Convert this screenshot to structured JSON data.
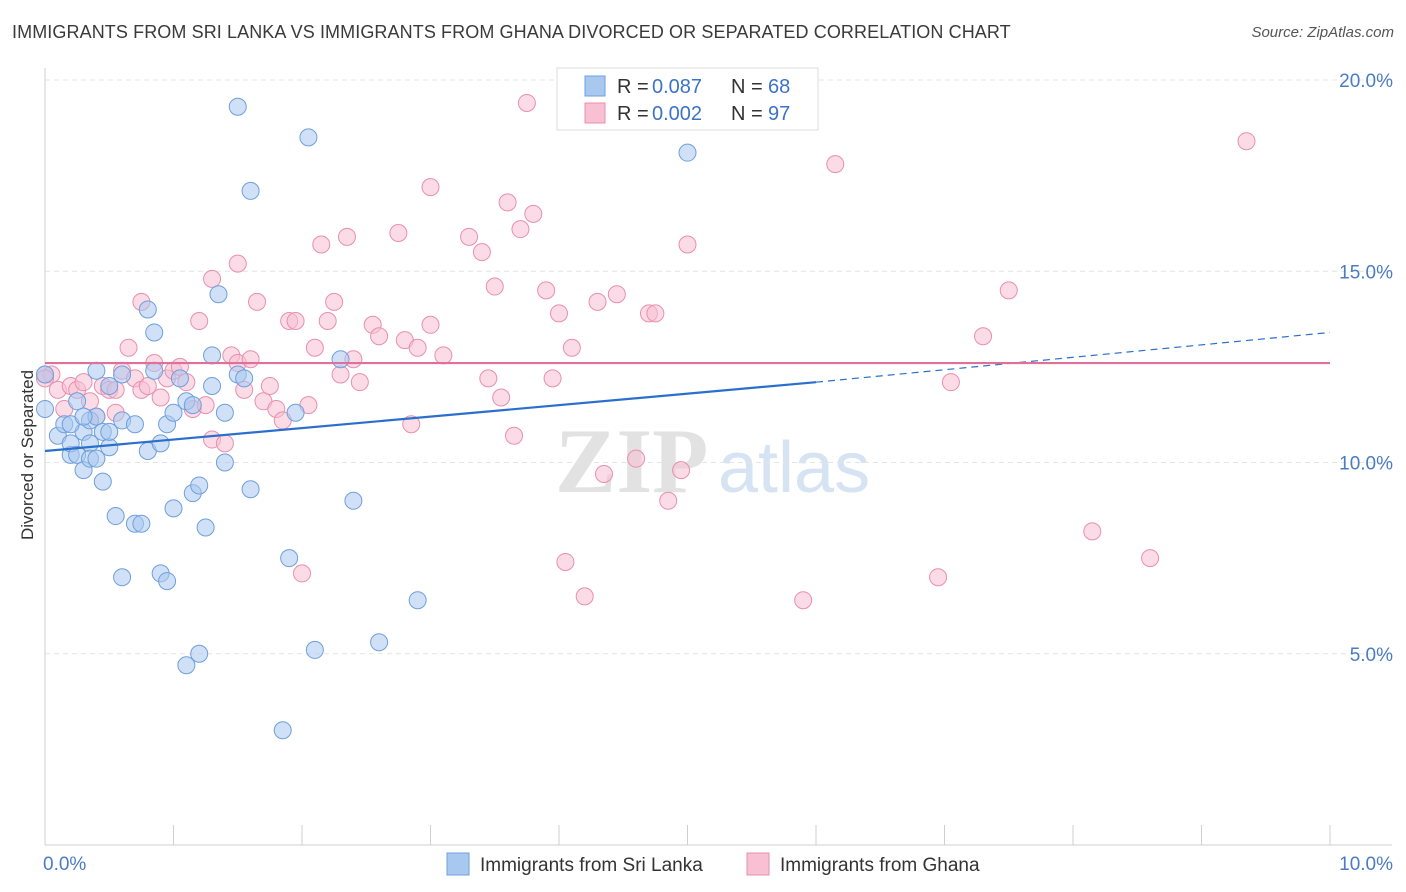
{
  "title": "IMMIGRANTS FROM SRI LANKA VS IMMIGRANTS FROM GHANA DIVORCED OR SEPARATED CORRELATION CHART",
  "source": "Source: ZipAtlas.com",
  "watermark": {
    "zip": "ZIP",
    "atlas": "atlas"
  },
  "colors": {
    "sri_lanka_fill": "#a9c8f0",
    "sri_lanka_stroke": "#6f9fdc",
    "sri_lanka_line": "#2b6fcc",
    "ghana_fill": "#f8c0d2",
    "ghana_stroke": "#e98fad",
    "ghana_line": "#e0709a",
    "tick_text": "#4a7cc4"
  },
  "legend": {
    "rows": [
      {
        "r_label": "R =",
        "r_value": "0.087",
        "n_label": "N =",
        "n_value": "68"
      },
      {
        "r_label": "R =",
        "r_value": "0.002",
        "n_label": "N =",
        "n_value": "97"
      }
    ]
  },
  "chart_data": {
    "type": "scatter",
    "title": "IMMIGRANTS FROM SRI LANKA VS IMMIGRANTS FROM GHANA DIVORCED OR SEPARATED CORRELATION CHART",
    "xlabel": "",
    "ylabel": "Divorced or Separated",
    "xlim": [
      0,
      10
    ],
    "ylim": [
      0,
      20
    ],
    "x_tick_labels": [
      "0.0%",
      "10.0%"
    ],
    "y_ticks": [
      5,
      10,
      15,
      20
    ],
    "y_tick_labels": [
      "5.0%",
      "10.0%",
      "15.0%",
      "20.0%"
    ],
    "grid": "horizontal dashed",
    "legend_position": "top-center",
    "series": [
      {
        "name": "Immigrants from Sri Lanka",
        "r": 0.087,
        "n": 68,
        "trend": {
          "x0": 0.0,
          "y0": 10.3,
          "x1": 6.0,
          "y1": 12.1,
          "dashed_to_x": 10.0,
          "dashed_to_y": 13.4
        },
        "points": [
          [
            0.0,
            12.3
          ],
          [
            0.0,
            11.4
          ],
          [
            0.1,
            10.7
          ],
          [
            0.15,
            11.0
          ],
          [
            0.2,
            10.2
          ],
          [
            0.2,
            10.5
          ],
          [
            0.25,
            10.2
          ],
          [
            0.25,
            11.6
          ],
          [
            0.3,
            9.8
          ],
          [
            0.3,
            10.8
          ],
          [
            0.35,
            11.1
          ],
          [
            0.35,
            10.5
          ],
          [
            0.35,
            10.1
          ],
          [
            0.4,
            10.1
          ],
          [
            0.4,
            11.2
          ],
          [
            0.4,
            12.4
          ],
          [
            0.45,
            10.8
          ],
          [
            0.45,
            9.5
          ],
          [
            0.5,
            12.0
          ],
          [
            0.5,
            10.4
          ],
          [
            0.5,
            10.8
          ],
          [
            0.6,
            12.3
          ],
          [
            0.6,
            11.1
          ],
          [
            0.55,
            8.6
          ],
          [
            0.6,
            7.0
          ],
          [
            0.7,
            11.0
          ],
          [
            0.7,
            8.4
          ],
          [
            0.75,
            8.4
          ],
          [
            0.8,
            10.3
          ],
          [
            0.8,
            14.0
          ],
          [
            0.85,
            13.4
          ],
          [
            0.85,
            12.4
          ],
          [
            0.9,
            10.5
          ],
          [
            0.9,
            7.1
          ],
          [
            0.95,
            6.9
          ],
          [
            0.95,
            11.0
          ],
          [
            1.0,
            11.3
          ],
          [
            1.0,
            8.8
          ],
          [
            1.05,
            12.2
          ],
          [
            1.1,
            11.6
          ],
          [
            1.1,
            4.7
          ],
          [
            1.15,
            9.2
          ],
          [
            1.2,
            9.4
          ],
          [
            1.2,
            5.0
          ],
          [
            1.25,
            8.3
          ],
          [
            1.3,
            12.0
          ],
          [
            1.3,
            12.8
          ],
          [
            1.35,
            14.4
          ],
          [
            1.4,
            11.3
          ],
          [
            1.4,
            10.0
          ],
          [
            1.5,
            12.3
          ],
          [
            1.55,
            12.2
          ],
          [
            1.5,
            19.3
          ],
          [
            1.6,
            17.1
          ],
          [
            1.6,
            9.3
          ],
          [
            1.9,
            7.5
          ],
          [
            1.85,
            3.0
          ],
          [
            1.95,
            11.3
          ],
          [
            2.1,
            5.1
          ],
          [
            2.05,
            18.5
          ],
          [
            2.3,
            12.7
          ],
          [
            2.4,
            9.0
          ],
          [
            2.6,
            5.3
          ],
          [
            2.9,
            6.4
          ],
          [
            5.0,
            18.1
          ],
          [
            1.15,
            11.5
          ],
          [
            0.2,
            11.0
          ],
          [
            0.3,
            11.2
          ]
        ]
      },
      {
        "name": "Immigrants from Ghana",
        "r": 0.002,
        "n": 97,
        "trend": {
          "x0": 0.0,
          "y0": 12.6,
          "x1": 10.0,
          "y1": 12.6
        },
        "points": [
          [
            0.0,
            12.3
          ],
          [
            0.05,
            12.3
          ],
          [
            0.1,
            11.9
          ],
          [
            0.15,
            11.4
          ],
          [
            0.2,
            12.0
          ],
          [
            0.25,
            11.9
          ],
          [
            0.3,
            12.1
          ],
          [
            0.35,
            11.6
          ],
          [
            0.4,
            11.2
          ],
          [
            0.45,
            12.0
          ],
          [
            0.5,
            11.9
          ],
          [
            0.55,
            11.9
          ],
          [
            0.55,
            11.3
          ],
          [
            0.6,
            12.4
          ],
          [
            0.65,
            13.0
          ],
          [
            0.7,
            12.2
          ],
          [
            0.75,
            14.2
          ],
          [
            0.75,
            11.9
          ],
          [
            0.8,
            12.0
          ],
          [
            0.85,
            12.6
          ],
          [
            0.9,
            11.7
          ],
          [
            0.95,
            12.2
          ],
          [
            1.0,
            12.4
          ],
          [
            1.05,
            12.5
          ],
          [
            1.1,
            12.1
          ],
          [
            1.15,
            11.4
          ],
          [
            1.2,
            13.7
          ],
          [
            1.25,
            11.5
          ],
          [
            1.3,
            10.6
          ],
          [
            1.3,
            14.8
          ],
          [
            1.4,
            10.5
          ],
          [
            1.45,
            12.8
          ],
          [
            1.5,
            12.6
          ],
          [
            1.5,
            15.2
          ],
          [
            1.55,
            11.9
          ],
          [
            1.6,
            12.7
          ],
          [
            1.65,
            14.2
          ],
          [
            1.7,
            11.6
          ],
          [
            1.75,
            12.0
          ],
          [
            1.8,
            11.4
          ],
          [
            1.85,
            11.1
          ],
          [
            1.9,
            13.7
          ],
          [
            1.95,
            13.7
          ],
          [
            2.0,
            7.1
          ],
          [
            2.05,
            11.5
          ],
          [
            2.1,
            13.0
          ],
          [
            2.15,
            15.7
          ],
          [
            2.2,
            13.7
          ],
          [
            2.25,
            14.2
          ],
          [
            2.3,
            12.3
          ],
          [
            2.35,
            15.9
          ],
          [
            2.4,
            12.7
          ],
          [
            2.45,
            12.1
          ],
          [
            2.55,
            13.6
          ],
          [
            2.6,
            13.3
          ],
          [
            2.75,
            16.0
          ],
          [
            2.8,
            13.2
          ],
          [
            2.85,
            11.0
          ],
          [
            2.9,
            13.0
          ],
          [
            3.0,
            13.6
          ],
          [
            3.0,
            17.2
          ],
          [
            3.1,
            12.8
          ],
          [
            3.3,
            15.9
          ],
          [
            3.4,
            15.5
          ],
          [
            3.45,
            12.2
          ],
          [
            3.5,
            14.6
          ],
          [
            3.55,
            11.7
          ],
          [
            3.6,
            16.8
          ],
          [
            3.65,
            10.7
          ],
          [
            3.7,
            16.1
          ],
          [
            3.75,
            19.4
          ],
          [
            3.8,
            16.5
          ],
          [
            3.9,
            14.5
          ],
          [
            3.95,
            12.2
          ],
          [
            4.0,
            13.9
          ],
          [
            4.05,
            7.4
          ],
          [
            4.1,
            13.0
          ],
          [
            4.2,
            6.5
          ],
          [
            4.3,
            14.2
          ],
          [
            4.35,
            9.7
          ],
          [
            4.45,
            14.4
          ],
          [
            4.6,
            10.1
          ],
          [
            4.7,
            13.9
          ],
          [
            4.75,
            13.9
          ],
          [
            4.85,
            9.0
          ],
          [
            4.95,
            9.8
          ],
          [
            5.0,
            15.7
          ],
          [
            5.9,
            6.4
          ],
          [
            6.15,
            17.8
          ],
          [
            6.95,
            7.0
          ],
          [
            7.05,
            12.1
          ],
          [
            7.3,
            13.3
          ],
          [
            7.5,
            14.5
          ],
          [
            8.15,
            8.2
          ],
          [
            8.6,
            7.5
          ],
          [
            9.35,
            18.4
          ],
          [
            0.0,
            12.2
          ]
        ]
      }
    ]
  },
  "bottom_legend": [
    {
      "label": "Immigrants from Sri Lanka"
    },
    {
      "label": "Immigrants from Ghana"
    }
  ]
}
